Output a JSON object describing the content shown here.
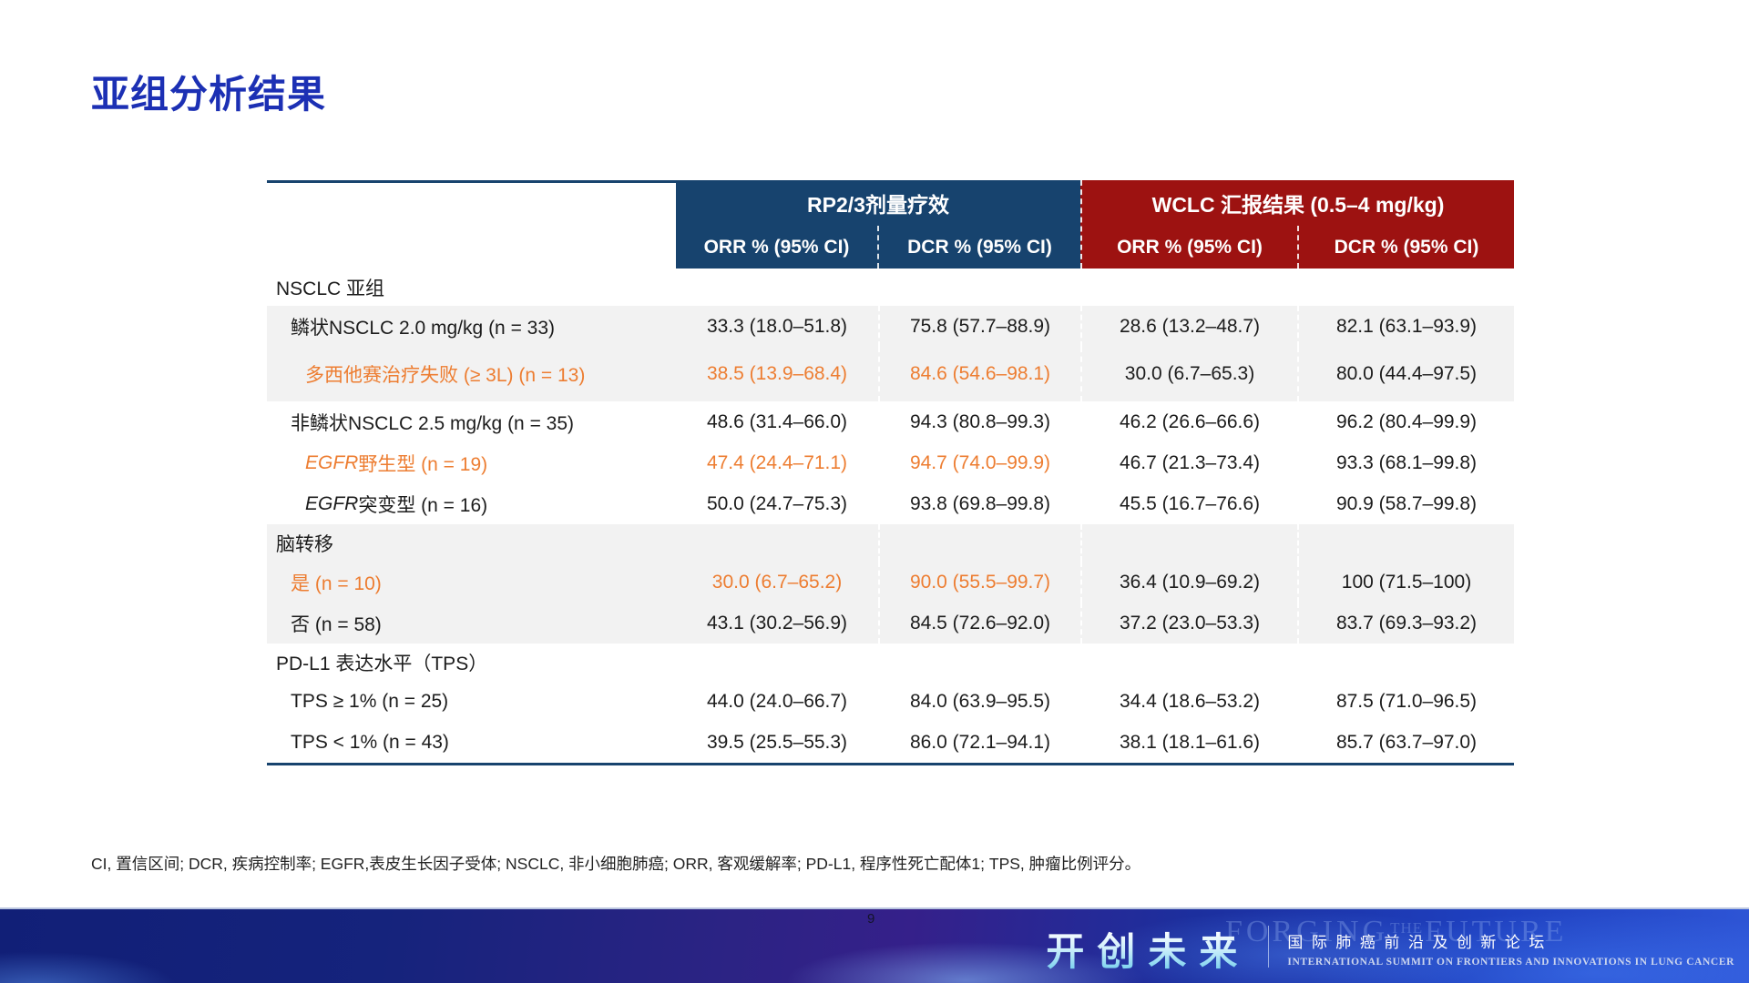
{
  "slide": {
    "title": "亚组分析结果",
    "page_number": "9",
    "footnote": "CI, 置信区间; DCR, 疾病控制率; EGFR,表皮生长因子受体; NSCLC, 非小细胞肺癌; ORR, 客观缓解率; PD-L1, 程序性死亡配体1; TPS, 肿瘤比例评分。"
  },
  "colors": {
    "title_blue": "#1c30b4",
    "header_blue": "#17436e",
    "header_red": "#9d1211",
    "table_border_blue": "#17436e",
    "row_gray": "#f2f2f2",
    "highlight_orange": "#ed7d31"
  },
  "table": {
    "group_headers": [
      {
        "label": "RP2/3剂量疗效"
      },
      {
        "label": "WCLC 汇报结果 (0.5–4 mg/kg)"
      }
    ],
    "column_headers": [
      "ORR % (95% CI)",
      "DCR % (95% CI)",
      "ORR % (95% CI)",
      "DCR % (95% CI)"
    ],
    "rows": [
      {
        "type": "section",
        "label": "NSCLC 亚组",
        "shaded": false,
        "values": [
          "",
          "",
          "",
          ""
        ]
      },
      {
        "type": "data",
        "indent": 1,
        "shaded": true,
        "highlight": false,
        "label": "鳞状NSCLC 2.0 mg/kg (n = 33)",
        "values": [
          "33.3 (18.0–51.8)",
          "75.8 (57.7–88.9)",
          "28.6 (13.2–48.7)",
          "82.1 (63.1–93.9)"
        ]
      },
      {
        "type": "data",
        "indent": 2,
        "shaded": true,
        "highlight": true,
        "tall": true,
        "label": "多西他赛治疗失败 (≥ 3L) (n = 13)",
        "values": [
          "38.5 (13.9–68.4)",
          "84.6 (54.6–98.1)",
          "30.0 (6.7–65.3)",
          "80.0 (44.4–97.5)"
        ]
      },
      {
        "type": "data",
        "indent": 1,
        "shaded": false,
        "highlight": false,
        "label": "非鳞状NSCLC 2.5 mg/kg (n = 35)",
        "values": [
          "48.6 (31.4–66.0)",
          "94.3 (80.8–99.3)",
          "46.2 (26.6–66.6)",
          "96.2 (80.4–99.9)"
        ]
      },
      {
        "type": "data",
        "indent": 2,
        "shaded": false,
        "highlight": true,
        "label_parts": [
          {
            "text": "EGFR",
            "italic": true
          },
          {
            "text": " 野生型 (n = 19)"
          }
        ],
        "values": [
          "47.4 (24.4–71.1)",
          "94.7 (74.0–99.9)",
          "46.7 (21.3–73.4)",
          "93.3 (68.1–99.8)"
        ]
      },
      {
        "type": "data",
        "indent": 2,
        "shaded": false,
        "highlight": false,
        "label_parts": [
          {
            "text": "EGFR",
            "italic": true
          },
          {
            "text": " 突变型 (n = 16)"
          }
        ],
        "values": [
          "50.0 (24.7–75.3)",
          "93.8 (69.8–99.8)",
          "45.5 (16.7–76.6)",
          "90.9 (58.7–99.8)"
        ]
      },
      {
        "type": "section",
        "label": "脑转移",
        "shaded": true,
        "values": [
          "",
          "",
          "",
          ""
        ]
      },
      {
        "type": "data",
        "indent": 1,
        "shaded": true,
        "highlight": true,
        "label": "是 (n = 10)",
        "values": [
          "30.0 (6.7–65.2)",
          "90.0 (55.5–99.7)",
          "36.4 (10.9–69.2)",
          "100 (71.5–100)"
        ]
      },
      {
        "type": "data",
        "indent": 1,
        "shaded": true,
        "highlight": false,
        "label": "否 (n = 58)",
        "values": [
          "43.1 (30.2–56.9)",
          "84.5 (72.6–92.0)",
          "37.2 (23.0–53.3)",
          "83.7 (69.3–93.2)"
        ]
      },
      {
        "type": "section",
        "label": "PD-L1 表达水平（TPS）",
        "shaded": false,
        "values": [
          "",
          "",
          "",
          ""
        ]
      },
      {
        "type": "data",
        "indent": 1,
        "shaded": false,
        "highlight": false,
        "label": "TPS ≥ 1% (n = 25)",
        "values": [
          "44.0 (24.0–66.7)",
          "84.0 (63.9–95.5)",
          "34.4 (18.6–53.2)",
          "87.5 (71.0–96.5)"
        ]
      },
      {
        "type": "data",
        "indent": 1,
        "shaded": false,
        "highlight": false,
        "label": "TPS < 1% (n = 43)",
        "values": [
          "39.5 (25.5–55.3)",
          "86.0 (72.1–94.1)",
          "38.1 (18.1–61.6)",
          "85.7 (63.7–97.0)"
        ]
      }
    ]
  },
  "footer": {
    "ghost": {
      "part1": "FORGING",
      "part2": "THE",
      "part3": "FUTURE"
    },
    "brand_cn": "开创未来",
    "forum_cn": "国际肺癌前沿及创新论坛",
    "forum_en": "INTERNATIONAL SUMMIT ON FRONTIERS AND INNOVATIONS IN LUNG CANCER"
  }
}
